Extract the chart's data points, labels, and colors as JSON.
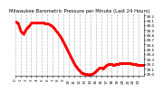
{
  "title": "Milwaukee Barometric Pressure per Minute (Last 24 Hours)",
  "title_fontsize": 3.8,
  "background_color": "#ffffff",
  "plot_bg_color": "#ffffff",
  "line_color": "#ff0000",
  "grid_color": "#bbbbbb",
  "ylabel": "",
  "xlabel": "",
  "y_tick_labels": [
    "29.0",
    "29.1",
    "29.2",
    "29.3",
    "29.4",
    "29.5",
    "29.6",
    "29.7",
    "29.8",
    "29.9",
    "30.0",
    "30.1",
    "30.2"
  ],
  "ylim": [
    28.95,
    30.25
  ],
  "num_points": 1440,
  "x_tick_positions": [
    0,
    60,
    120,
    180,
    240,
    300,
    360,
    420,
    480,
    540,
    600,
    660,
    720,
    780,
    840,
    900,
    960,
    1020,
    1080,
    1140,
    1200,
    1260,
    1320,
    1380
  ],
  "x_tick_labels": [
    "0",
    "1",
    "2",
    "3",
    "4",
    "5",
    "6",
    "7",
    "8",
    "9",
    "10",
    "11",
    "12",
    "13",
    "14",
    "15",
    "16",
    "17",
    "18",
    "19",
    "20",
    "21",
    "22",
    "23"
  ],
  "pressure_keyframes": [
    [
      0,
      30.08
    ],
    [
      30,
      30.05
    ],
    [
      60,
      29.88
    ],
    [
      90,
      29.82
    ],
    [
      120,
      29.92
    ],
    [
      180,
      30.05
    ],
    [
      240,
      30.05
    ],
    [
      300,
      30.05
    ],
    [
      360,
      30.04
    ],
    [
      400,
      30.0
    ],
    [
      430,
      29.95
    ],
    [
      460,
      29.88
    ],
    [
      500,
      29.78
    ],
    [
      540,
      29.65
    ],
    [
      580,
      29.5
    ],
    [
      620,
      29.35
    ],
    [
      660,
      29.2
    ],
    [
      700,
      29.1
    ],
    [
      740,
      29.02
    ],
    [
      780,
      28.99
    ],
    [
      820,
      28.98
    ],
    [
      860,
      28.99
    ],
    [
      900,
      29.05
    ],
    [
      940,
      29.12
    ],
    [
      960,
      29.13
    ],
    [
      980,
      29.1
    ],
    [
      1000,
      29.14
    ],
    [
      1020,
      29.18
    ],
    [
      1060,
      29.2
    ],
    [
      1100,
      29.18
    ],
    [
      1140,
      29.2
    ],
    [
      1200,
      29.22
    ],
    [
      1260,
      29.22
    ],
    [
      1320,
      29.2
    ],
    [
      1380,
      29.18
    ],
    [
      1439,
      29.17
    ]
  ],
  "marker_size": 0.7,
  "tick_fontsize": 3.0,
  "grid_linewidth": 0.5,
  "line_width": 0.0
}
